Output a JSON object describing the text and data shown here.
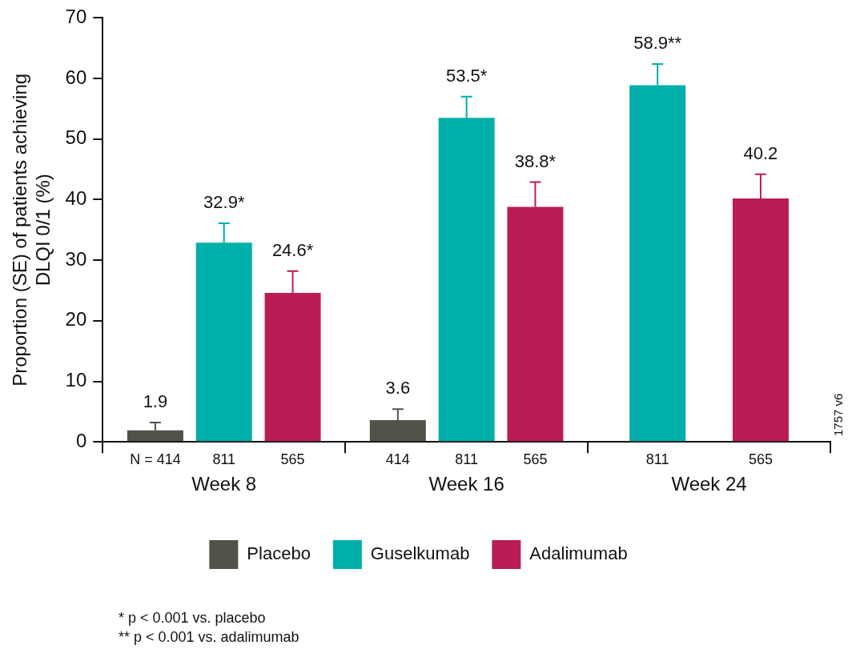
{
  "chart_data": {
    "type": "bar",
    "ylabel": "Proportion (SE) of patients achieving\nDLQI 0/1 (%)",
    "categories": [
      "Week 8",
      "Week 16",
      "Week 24"
    ],
    "series": [
      {
        "name": "Placebo",
        "color": "#52524a",
        "values": [
          1.9,
          3.6,
          null
        ],
        "errors": [
          [
            1.9,
            3.2
          ],
          [
            3.6,
            5.4
          ],
          null
        ],
        "value_labels": [
          "1.9",
          "3.6",
          null
        ]
      },
      {
        "name": "Guselkumab",
        "color": "#00afaa",
        "values": [
          32.9,
          53.5,
          58.9
        ],
        "errors": [
          [
            32.9,
            36.1
          ],
          [
            53.5,
            57.0
          ],
          [
            58.9,
            62.4
          ]
        ],
        "value_labels": [
          "32.9*",
          "53.5*",
          "58.9**"
        ]
      },
      {
        "name": "Adalimumab",
        "color": "#b91c55",
        "values": [
          24.6,
          38.8,
          40.2
        ],
        "errors": [
          [
            24.6,
            28.2
          ],
          [
            38.8,
            42.9
          ],
          [
            40.2,
            44.2
          ]
        ],
        "value_labels": [
          "24.6*",
          "38.8*",
          "40.2"
        ]
      }
    ],
    "ylim": [
      0,
      70
    ],
    "yticks": [
      0,
      10,
      20,
      30,
      40,
      50,
      60,
      70
    ],
    "grid": false,
    "legend": "bottom",
    "annotations": [
      "N = 414",
      "811",
      "565",
      "414",
      "811",
      "565",
      "811",
      "565",
      "* p < 0.001 vs. placebo",
      "** p < 0.001 vs. adalimumab",
      "1757 v6"
    ]
  }
}
